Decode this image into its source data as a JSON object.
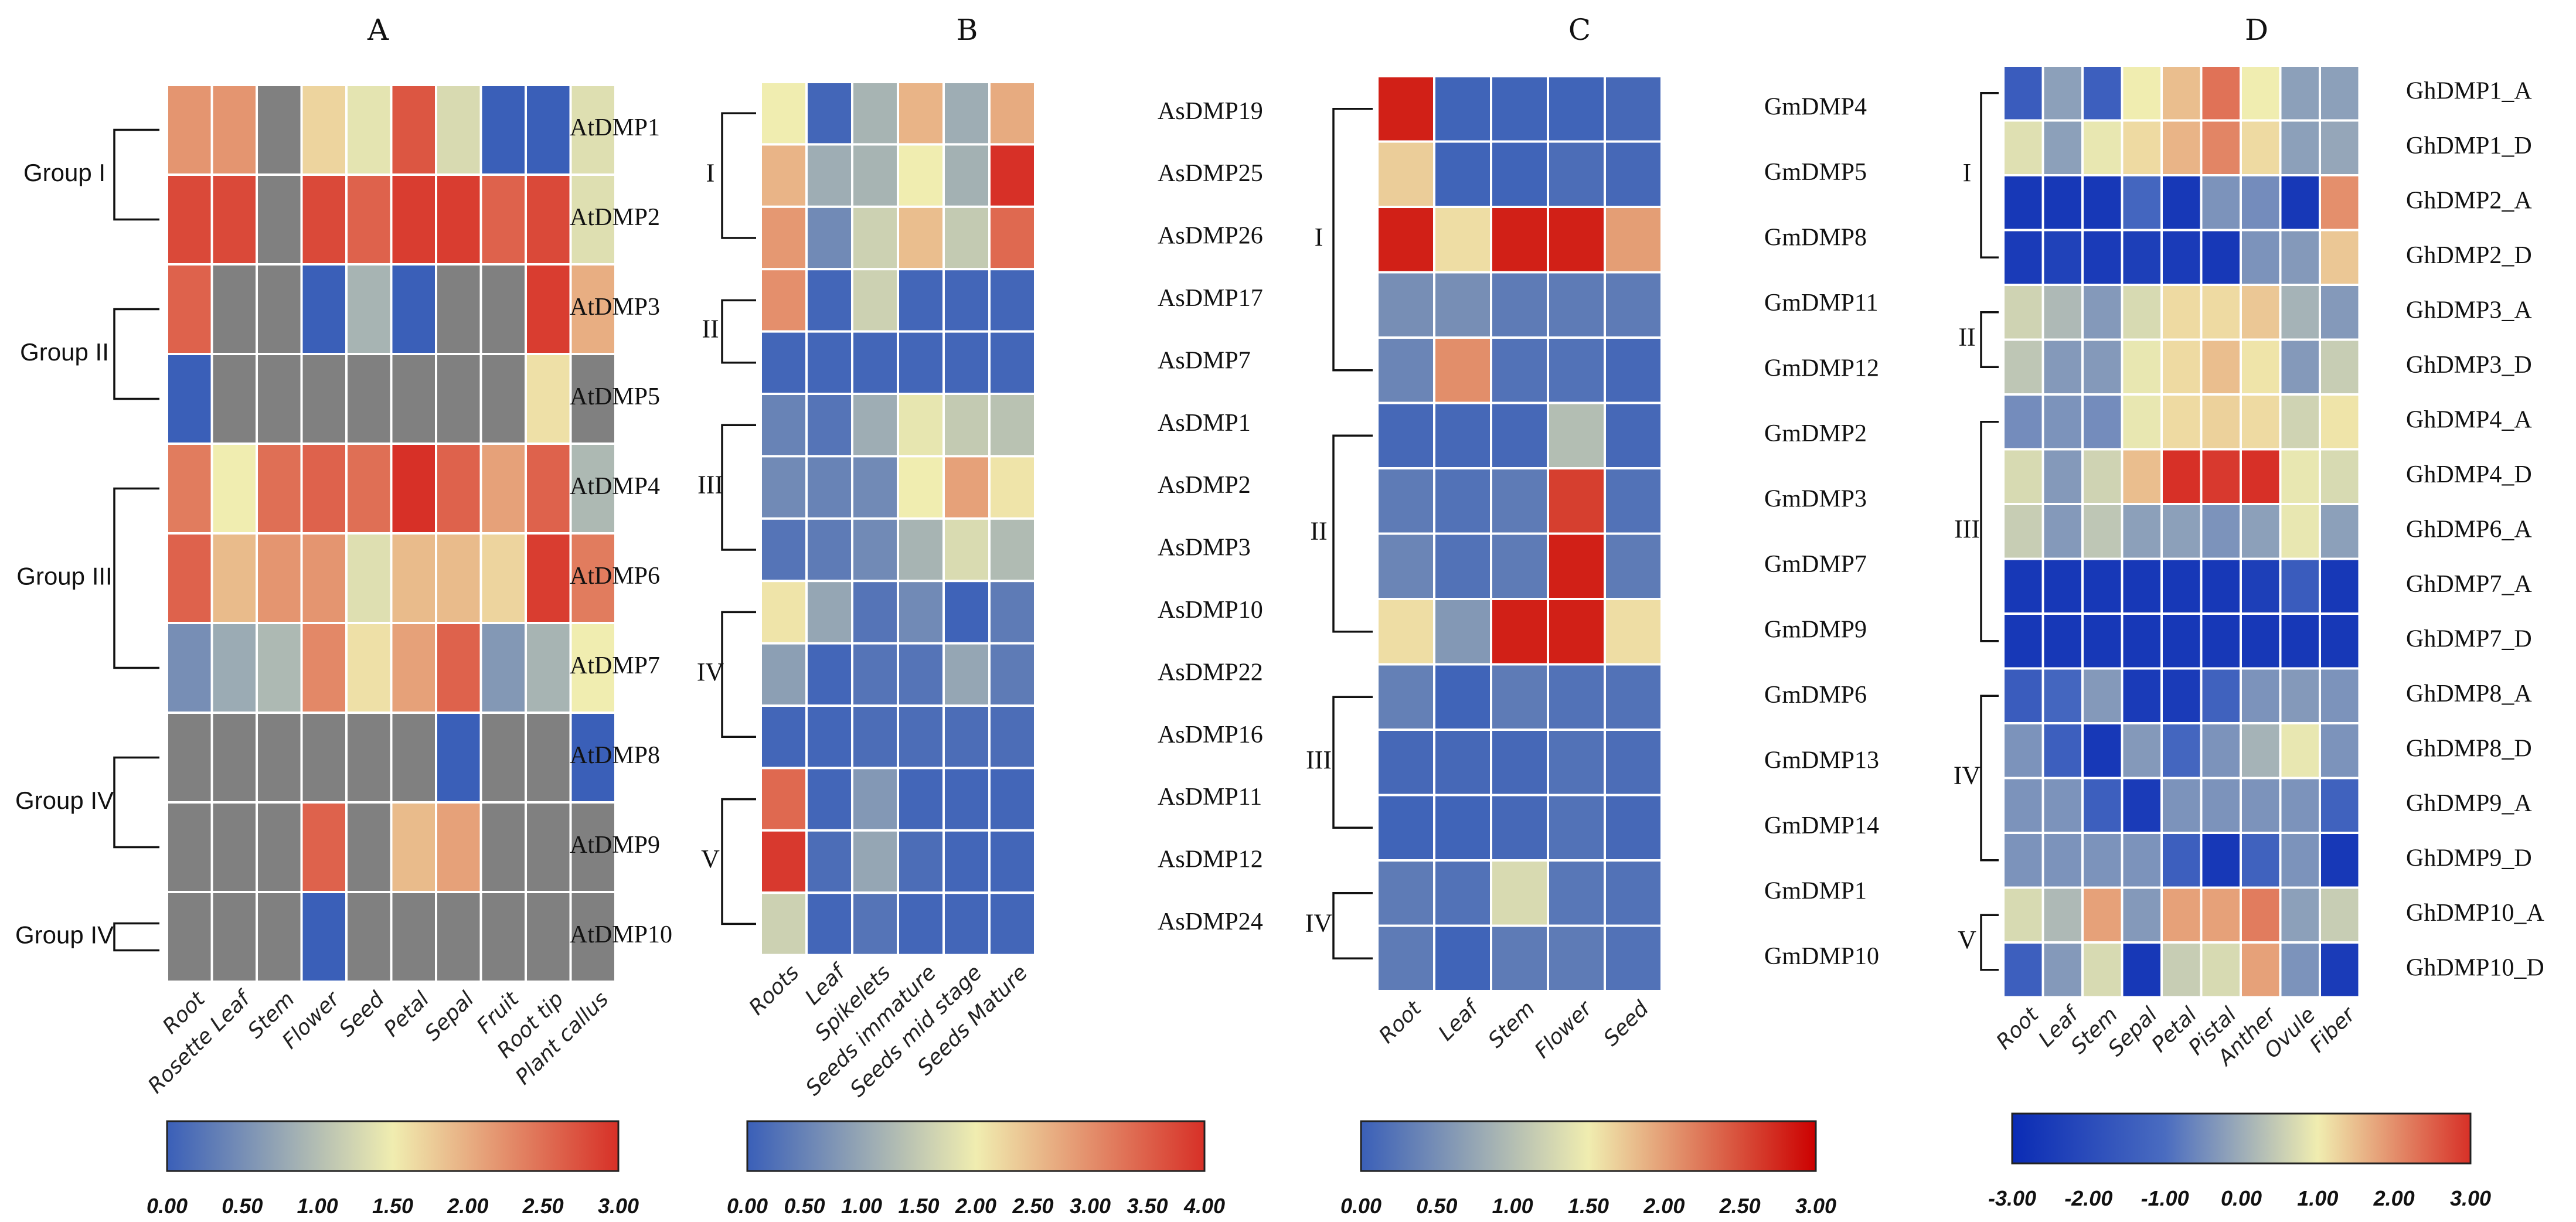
{
  "chart_data": [
    {
      "type": "heatmap",
      "title": "A",
      "columns": [
        "Root",
        "Rosette Leaf",
        "Stem",
        "Flower",
        "Seed",
        "Petal",
        "Sepal",
        "Fruit",
        "Root tip",
        "Plant callus"
      ],
      "rows": [
        "AtDMP1",
        "AtDMP2",
        "AtDMP3",
        "AtDMP5",
        "AtDMP4",
        "AtDMP6",
        "AtDMP7",
        "AtDMP8",
        "AtDMP9",
        "AtDMP10"
      ],
      "values": [
        [
          2.2,
          2.2,
          null,
          1.7,
          1.4,
          2.7,
          1.3,
          0.0,
          0.0,
          1.35
        ],
        [
          2.8,
          2.8,
          null,
          2.8,
          2.6,
          2.9,
          2.9,
          2.6,
          2.8,
          1.35
        ],
        [
          2.6,
          null,
          null,
          0.0,
          0.9,
          0.0,
          null,
          null,
          2.9,
          2.0
        ],
        [
          0.0,
          null,
          null,
          null,
          null,
          null,
          null,
          null,
          1.6,
          null
        ],
        [
          2.4,
          1.5,
          2.5,
          2.6,
          2.5,
          3.0,
          2.6,
          2.1,
          2.6,
          0.95
        ],
        [
          2.6,
          1.9,
          2.2,
          2.2,
          1.35,
          1.9,
          1.9,
          1.7,
          2.9,
          2.4
        ],
        [
          0.5,
          0.8,
          0.95,
          2.3,
          1.6,
          2.1,
          2.6,
          0.6,
          0.9,
          1.5
        ],
        [
          null,
          null,
          null,
          null,
          null,
          null,
          0.0,
          null,
          null,
          0.0
        ],
        [
          null,
          null,
          null,
          2.6,
          null,
          1.9,
          2.1,
          null,
          null,
          null
        ],
        [
          null,
          null,
          null,
          0.0,
          null,
          null,
          null,
          null,
          null,
          null
        ]
      ],
      "groups": [
        {
          "label": "Group I",
          "rows": [
            "AtDMP1",
            "AtDMP2"
          ]
        },
        {
          "label": "Group II",
          "rows": [
            "AtDMP3",
            "AtDMP5"
          ]
        },
        {
          "label": "Group III",
          "rows": [
            "AtDMP4",
            "AtDMP6",
            "AtDMP7"
          ]
        },
        {
          "label": "Group IV",
          "rows": [
            "AtDMP8",
            "AtDMP9"
          ]
        },
        {
          "label": "Group IV",
          "rows": [
            "AtDMP10"
          ]
        }
      ],
      "missing_color": "#808080",
      "colorbar": {
        "min": 0,
        "max": 3,
        "ticks": [
          "0.00",
          "0.50",
          "1.00",
          "1.50",
          "2.00",
          "2.50",
          "3.00"
        ],
        "colors": [
          "#3a5fb8",
          "#f0edb0",
          "#d73027"
        ]
      }
    },
    {
      "type": "heatmap",
      "title": "B",
      "columns": [
        "Roots",
        "Leaf",
        "Spikelets",
        "Seeds immature",
        "Seeds mid stage",
        "Seeds Mature"
      ],
      "rows": [
        "AsDMP19",
        "AsDMP25",
        "AsDMP26",
        "AsDMP17",
        "AsDMP7",
        "AsDMP1",
        "AsDMP2",
        "AsDMP3",
        "AsDMP10",
        "AsDMP22",
        "AsDMP16",
        "AsDMP11",
        "AsDMP12",
        "AsDMP24"
      ],
      "values": [
        [
          2.0,
          0.1,
          1.2,
          2.6,
          1.1,
          2.7
        ],
        [
          2.6,
          1.1,
          1.2,
          2.0,
          1.15,
          4.0
        ],
        [
          2.9,
          0.6,
          1.6,
          2.5,
          1.5,
          3.4
        ],
        [
          3.0,
          0.1,
          1.6,
          0.1,
          0.1,
          0.1
        ],
        [
          0.1,
          0.1,
          0.1,
          0.1,
          0.1,
          0.1
        ],
        [
          0.5,
          0.3,
          1.1,
          1.9,
          1.5,
          1.4
        ],
        [
          0.6,
          0.5,
          0.6,
          2.0,
          2.8,
          2.1
        ],
        [
          0.3,
          0.4,
          0.6,
          1.2,
          1.75,
          1.3
        ],
        [
          2.1,
          1.0,
          0.3,
          0.6,
          0.05,
          0.4
        ],
        [
          0.9,
          0.1,
          0.3,
          0.3,
          1.0,
          0.4
        ],
        [
          0.1,
          0.1,
          0.2,
          0.2,
          0.2,
          0.2
        ],
        [
          3.4,
          0.1,
          0.8,
          0.1,
          0.1,
          0.1
        ],
        [
          3.9,
          0.2,
          1.0,
          0.2,
          0.1,
          0.1
        ],
        [
          1.6,
          0.1,
          0.3,
          0.1,
          0.1,
          0.1
        ]
      ],
      "groups": [
        {
          "label": "I",
          "rows": [
            "AsDMP19",
            "AsDMP25",
            "AsDMP26"
          ]
        },
        {
          "label": "II",
          "rows": [
            "AsDMP17",
            "AsDMP7"
          ]
        },
        {
          "label": "III",
          "rows": [
            "AsDMP1",
            "AsDMP2",
            "AsDMP3"
          ]
        },
        {
          "label": "IV",
          "rows": [
            "AsDMP10",
            "AsDMP22",
            "AsDMP16"
          ]
        },
        {
          "label": "V",
          "rows": [
            "AsDMP11",
            "AsDMP12",
            "AsDMP24"
          ]
        }
      ],
      "colorbar": {
        "min": 0,
        "max": 4,
        "ticks": [
          "0.00",
          "0.50",
          "1.00",
          "1.50",
          "2.00",
          "2.50",
          "3.00",
          "3.50",
          "4.00"
        ],
        "colors": [
          "#3a5fb8",
          "#f0edb0",
          "#d73027"
        ]
      }
    },
    {
      "type": "heatmap",
      "title": "C",
      "columns": [
        "Root",
        "Leaf",
        "Stem",
        "Flower",
        "Seed"
      ],
      "rows": [
        "GmDMP4",
        "GmDMP5",
        "GmDMP8",
        "GmDMP11",
        "GmDMP12",
        "GmDMP2",
        "GmDMP3",
        "GmDMP7",
        "GmDMP9",
        "GmDMP6",
        "GmDMP13",
        "GmDMP14",
        "GmDMP1",
        "GmDMP10"
      ],
      "values": [
        [
          2.8,
          0.05,
          0.05,
          0.05,
          0.1
        ],
        [
          1.7,
          0.05,
          0.05,
          0.15,
          0.1
        ],
        [
          2.8,
          1.6,
          2.8,
          2.8,
          2.0
        ],
        [
          0.5,
          0.5,
          0.3,
          0.3,
          0.3
        ],
        [
          0.4,
          2.1,
          0.2,
          0.2,
          0.1
        ],
        [
          0.1,
          0.1,
          0.1,
          1.0,
          0.1
        ],
        [
          0.3,
          0.2,
          0.3,
          2.6,
          0.2
        ],
        [
          0.4,
          0.2,
          0.3,
          2.8,
          0.3
        ],
        [
          1.6,
          0.6,
          2.8,
          2.8,
          1.6
        ],
        [
          0.35,
          0.05,
          0.3,
          0.2,
          0.2
        ],
        [
          0.1,
          0.1,
          0.1,
          0.2,
          0.15
        ],
        [
          0.05,
          0.05,
          0.1,
          0.2,
          0.1
        ],
        [
          0.3,
          0.2,
          1.3,
          0.25,
          0.2
        ],
        [
          0.3,
          0.05,
          0.3,
          0.3,
          0.2
        ]
      ],
      "groups": [
        {
          "label": "I",
          "rows": [
            "GmDMP4",
            "GmDMP5",
            "GmDMP8",
            "GmDMP11",
            "GmDMP12"
          ]
        },
        {
          "label": "II",
          "rows": [
            "GmDMP2",
            "GmDMP3",
            "GmDMP7",
            "GmDMP9"
          ]
        },
        {
          "label": "III",
          "rows": [
            "GmDMP6",
            "GmDMP13",
            "GmDMP14"
          ]
        },
        {
          "label": "IV",
          "rows": [
            "GmDMP1",
            "GmDMP10"
          ]
        }
      ],
      "colorbar": {
        "min": 0,
        "max": 3,
        "ticks": [
          "0.00",
          "0.50",
          "1.00",
          "1.50",
          "2.00",
          "2.50",
          "3.00"
        ],
        "colors": [
          "#3a5fb8",
          "#f0edb0",
          "#cc0000"
        ]
      }
    },
    {
      "type": "heatmap",
      "title": "D",
      "columns": [
        "Root",
        "Leaf",
        "Stem",
        "Sepal",
        "Petal",
        "Pistal",
        "Anther",
        "Ovule",
        "Fiber"
      ],
      "rows": [
        "GhDMP1_A",
        "GhDMP1_D",
        "GhDMP2_A",
        "GhDMP2_D",
        "GhDMP3_A",
        "GhDMP3_D",
        "GhDMP4_A",
        "GhDMP4_D",
        "GhDMP6_A",
        "GhDMP7_A",
        "GhDMP7_D",
        "GhDMP8_A",
        "GhDMP8_D",
        "GhDMP9_A",
        "GhDMP9_D",
        "GhDMP10_A",
        "GhDMP10_D"
      ],
      "values": [
        [
          -1.5,
          -0.2,
          -1.4,
          1.0,
          1.5,
          2.3,
          1.0,
          -0.2,
          -0.2
        ],
        [
          0.8,
          -0.2,
          0.9,
          1.2,
          1.6,
          2.1,
          1.2,
          -0.2,
          -0.1
        ],
        [
          -2.6,
          -2.6,
          -2.6,
          -1.2,
          -2.6,
          -0.4,
          -0.5,
          -2.6,
          2.0
        ],
        [
          -2.5,
          -2.3,
          -2.5,
          -2.4,
          -2.5,
          -2.6,
          -0.4,
          -0.3,
          1.4
        ],
        [
          0.6,
          0.2,
          -0.3,
          0.7,
          1.2,
          1.2,
          1.4,
          0.1,
          -0.3
        ],
        [
          0.4,
          -0.3,
          -0.3,
          0.9,
          1.2,
          1.5,
          1.1,
          -0.3,
          0.5
        ],
        [
          -0.5,
          -0.4,
          -0.5,
          0.9,
          1.2,
          1.3,
          1.2,
          0.6,
          1.1
        ],
        [
          0.7,
          -0.3,
          0.6,
          1.5,
          3.0,
          2.9,
          3.0,
          0.9,
          0.7
        ],
        [
          0.5,
          -0.3,
          0.4,
          -0.2,
          -0.2,
          -0.4,
          -0.2,
          0.9,
          -0.2
        ],
        [
          -2.6,
          -2.6,
          -2.6,
          -2.6,
          -2.6,
          -2.6,
          -2.4,
          -1.5,
          -2.6
        ],
        [
          -2.6,
          -2.6,
          -2.6,
          -2.6,
          -2.6,
          -2.6,
          -2.6,
          -2.6,
          -2.6
        ],
        [
          -1.5,
          -1.2,
          -0.3,
          -2.5,
          -2.5,
          -1.3,
          -0.4,
          -0.3,
          -0.4
        ],
        [
          -0.4,
          -1.4,
          -2.6,
          -0.3,
          -1.2,
          -0.4,
          0.1,
          0.9,
          -0.4
        ],
        [
          -0.4,
          -0.4,
          -1.4,
          -2.5,
          -0.4,
          -0.4,
          -0.4,
          -0.4,
          -1.3
        ],
        [
          -0.4,
          -0.4,
          -0.4,
          -0.4,
          -1.4,
          -2.6,
          -1.3,
          -0.4,
          -2.6
        ],
        [
          0.7,
          0.2,
          1.8,
          -0.3,
          1.8,
          1.8,
          2.2,
          -0.2,
          0.5
        ],
        [
          -1.4,
          -0.3,
          0.7,
          -2.6,
          0.5,
          0.7,
          1.8,
          -0.4,
          -2.5
        ]
      ],
      "groups": [
        {
          "label": "I",
          "rows": [
            "GhDMP1_A",
            "GhDMP1_D",
            "GhDMP2_A",
            "GhDMP2_D"
          ]
        },
        {
          "label": "II",
          "rows": [
            "GhDMP3_A",
            "GhDMP3_D"
          ]
        },
        {
          "label": "III",
          "rows": [
            "GhDMP4_A",
            "GhDMP4_D",
            "GhDMP6_A",
            "GhDMP7_A",
            "GhDMP7_D"
          ]
        },
        {
          "label": "IV",
          "rows": [
            "GhDMP8_A",
            "GhDMP8_D",
            "GhDMP9_A",
            "GhDMP9_D"
          ]
        },
        {
          "label": "V",
          "rows": [
            "GhDMP10_A",
            "GhDMP10_D"
          ]
        }
      ],
      "colorbar": {
        "min": -3,
        "max": 3,
        "ticks": [
          "-3.00",
          "-2.00",
          "-1.00",
          "0.00",
          "1.00",
          "2.00",
          "3.00"
        ],
        "colors": [
          "#0a2bb5",
          "#4a6cc0",
          "#f0edb0",
          "#d73027"
        ]
      }
    }
  ]
}
